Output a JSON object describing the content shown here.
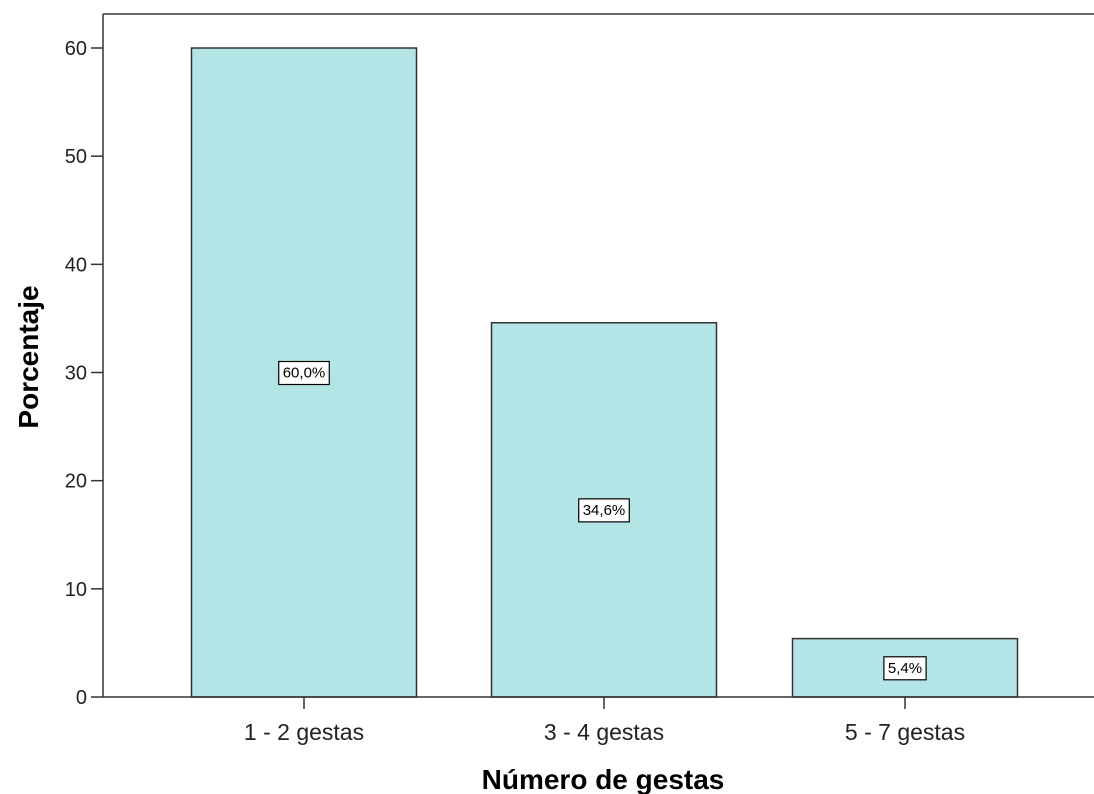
{
  "chart_data": {
    "type": "bar",
    "title": "",
    "xlabel": "Número de gestas",
    "ylabel": "Porcentaje",
    "categories": [
      "1 - 2 gestas",
      "3 - 4 gestas",
      "5 - 7 gestas"
    ],
    "values": [
      60.0,
      34.6,
      5.4
    ],
    "data_labels": [
      "60,0%",
      "34,6%",
      "5,4%"
    ],
    "ylim": [
      0,
      63.2
    ],
    "yticks": [
      0,
      10,
      20,
      30,
      40,
      50,
      60
    ],
    "ytick_labels": [
      "0",
      "10",
      "20",
      "30",
      "40",
      "50",
      "60"
    ],
    "grid": false,
    "legend": "none",
    "colors": {
      "bar_fill": "#b4e5e6",
      "bar_stroke": "#333333",
      "axis": "#333333",
      "label_box": "#ffffff"
    }
  }
}
